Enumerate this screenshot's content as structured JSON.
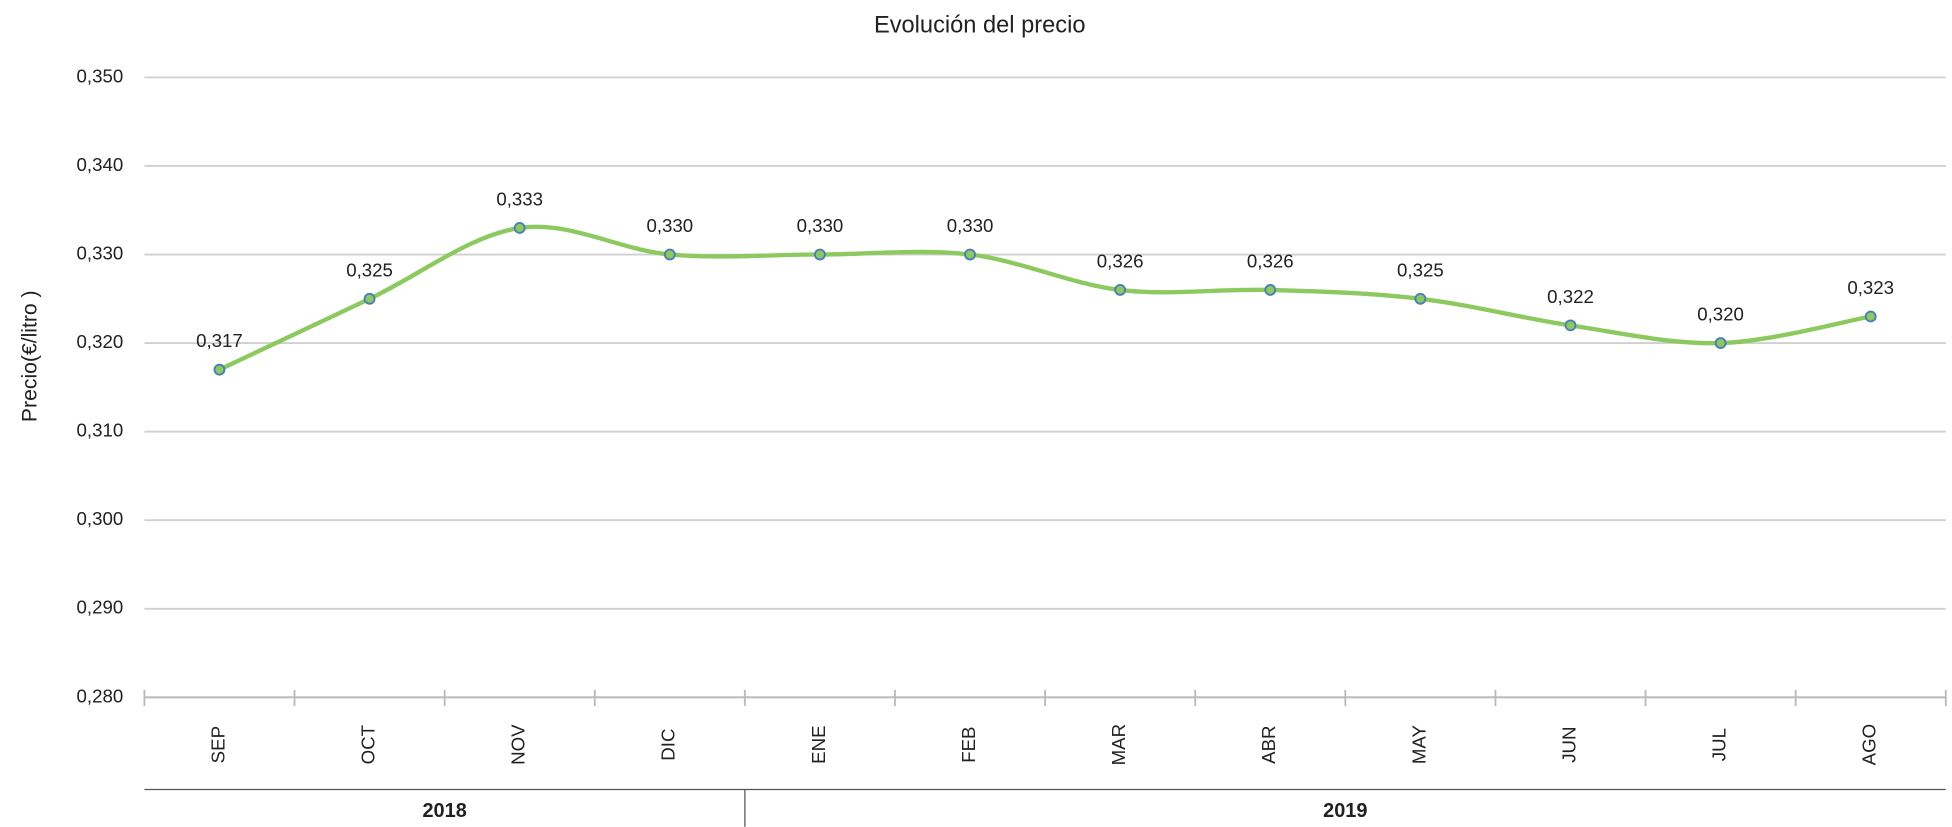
{
  "chart_data": {
    "type": "line",
    "title": "Evolución del precio",
    "y_label": "Precio(€/litro )",
    "categories": [
      "SEP",
      "OCT",
      "NOV",
      "DIC",
      "ENE",
      "FEB",
      "MAR",
      "ABR",
      "MAY",
      "JUN",
      "JUL",
      "AGO"
    ],
    "x_groups": [
      {
        "label": "2018",
        "count": 4
      },
      {
        "label": "2019",
        "count": 8
      }
    ],
    "series": [
      {
        "name": "Precio",
        "color": "#8cc95f",
        "values": [
          0.317,
          0.325,
          0.333,
          0.33,
          0.33,
          0.33,
          0.326,
          0.326,
          0.325,
          0.322,
          0.32,
          0.323
        ],
        "value_labels": [
          "0,317",
          "0,325",
          "0,333",
          "0,330",
          "0,330",
          "0,330",
          "0,326",
          "0,326",
          "0,325",
          "0,322",
          "0,320",
          "0,323"
        ]
      }
    ],
    "ylim": [
      0.28,
      0.35
    ],
    "yticks": [
      {
        "value": 0.28,
        "label": "0,280"
      },
      {
        "value": 0.29,
        "label": "0,290"
      },
      {
        "value": 0.3,
        "label": "0,300"
      },
      {
        "value": 0.31,
        "label": "0,310"
      },
      {
        "value": 0.32,
        "label": "0,320"
      },
      {
        "value": 0.33,
        "label": "0,330"
      },
      {
        "value": 0.34,
        "label": "0,340"
      },
      {
        "value": 0.35,
        "label": "0,350"
      }
    ],
    "grid": true,
    "marker_edge_color": "#4a7ebb"
  }
}
